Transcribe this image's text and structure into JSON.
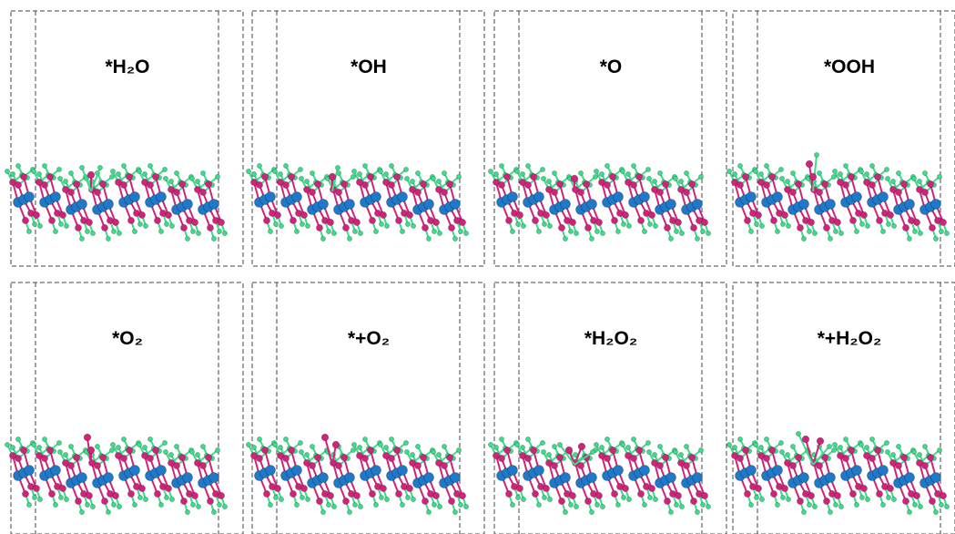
{
  "panels": [
    {
      "label": "*H₂O"
    },
    {
      "label": "*OH"
    },
    {
      "label": "*O"
    },
    {
      "label": "*OOH"
    },
    {
      "label": "*O₂"
    },
    {
      "label": "*+O₂"
    },
    {
      "label": "*H₂O₂"
    },
    {
      "label": "*+H₂O₂"
    }
  ]
}
